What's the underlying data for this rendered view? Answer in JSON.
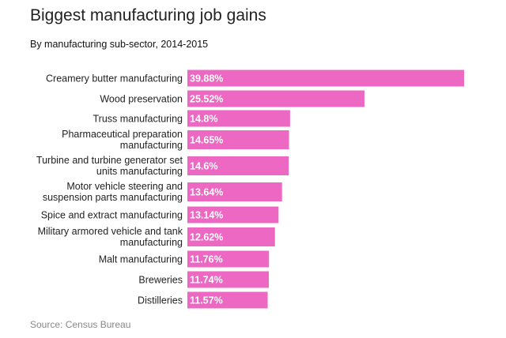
{
  "chart_data": {
    "type": "bar",
    "orientation": "horizontal",
    "title": "Biggest manufacturing job gains",
    "subtitle": "By manufacturing sub-sector, 2014-2015",
    "source": "Source: Census Bureau",
    "categories": [
      [
        "Creamery butter manufacturing"
      ],
      [
        "Wood preservation"
      ],
      [
        "Truss manufacturing"
      ],
      [
        "Pharmaceutical preparation",
        "manufacturing"
      ],
      [
        "Turbine and turbine generator set",
        "units manufacturing"
      ],
      [
        "Motor vehicle steering and",
        "suspension parts manufacturing"
      ],
      [
        "Spice and extract manufacturing"
      ],
      [
        "Military armored vehicle and tank",
        "manufacturing"
      ],
      [
        "Malt manufacturing"
      ],
      [
        "Breweries"
      ],
      [
        "Distilleries"
      ]
    ],
    "values": [
      39.88,
      25.52,
      14.8,
      14.65,
      14.6,
      13.64,
      13.14,
      12.62,
      11.76,
      11.74,
      11.57
    ],
    "value_labels": [
      "39.88%",
      "25.52%",
      "14.8%",
      "14.65%",
      "14.6%",
      "13.64%",
      "13.14%",
      "12.62%",
      "11.76%",
      "11.74%",
      "11.57%"
    ],
    "unit": "%",
    "bar_color": "#ec68c3",
    "grid": false,
    "legend": "none"
  }
}
